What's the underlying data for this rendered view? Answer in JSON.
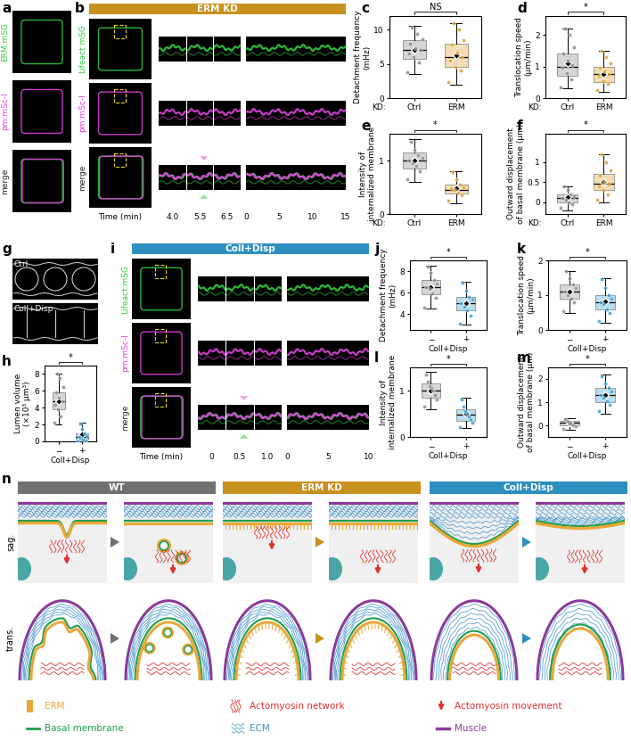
{
  "chart_data": [
    {
      "panel": "c",
      "type": "box",
      "ylabel": "Detachment frequency\n(mHz)",
      "category_prefix": "KD:",
      "categories": [
        "Ctrl",
        "ERM"
      ],
      "colors": [
        "#8c8c8c",
        "#e0a030"
      ],
      "ylim": [
        0,
        12
      ],
      "yticks": [
        0,
        5,
        10
      ],
      "significance": "NS",
      "groups": [
        {
          "q1": 5.8,
          "median": 7.0,
          "q3": 8.5,
          "whisker_low": 3.5,
          "whisker_high": 10.5,
          "mean": 7.0,
          "points": [
            3.8,
            5.2,
            6.0,
            6.5,
            7.0,
            7.3,
            8.0,
            8.6,
            9.4,
            10.3
          ]
        },
        {
          "q1": 4.5,
          "median": 6.0,
          "q3": 8.0,
          "whisker_low": 2.0,
          "whisker_high": 11.0,
          "mean": 6.3,
          "points": [
            2.3,
            4.0,
            4.6,
            5.5,
            6.0,
            6.6,
            7.8,
            8.5,
            10.0,
            11.0
          ]
        }
      ]
    },
    {
      "panel": "d",
      "type": "box",
      "ylabel": "Translocation speed\n(µm/min)",
      "category_prefix": "KD:",
      "categories": [
        "Ctrl",
        "ERM"
      ],
      "colors": [
        "#8c8c8c",
        "#e0a030"
      ],
      "ylim": [
        0,
        2.6
      ],
      "yticks": [
        0,
        1,
        2
      ],
      "significance": "*",
      "groups": [
        {
          "q1": 0.7,
          "median": 1.0,
          "q3": 1.4,
          "whisker_low": 0.3,
          "whisker_high": 2.2,
          "mean": 1.1,
          "points": [
            0.35,
            0.6,
            0.8,
            0.95,
            1.05,
            1.2,
            1.4,
            1.6,
            2.0,
            2.2
          ]
        },
        {
          "q1": 0.5,
          "median": 0.75,
          "q3": 1.0,
          "whisker_low": 0.2,
          "whisker_high": 1.5,
          "mean": 0.75,
          "points": [
            0.25,
            0.45,
            0.55,
            0.7,
            0.75,
            0.85,
            0.95,
            1.1,
            1.3,
            1.5
          ]
        }
      ]
    },
    {
      "panel": "e",
      "type": "box",
      "ylabel": "Intensity of\ninternalized membrane",
      "category_prefix": "KD:",
      "categories": [
        "Ctrl",
        "ERM"
      ],
      "colors": [
        "#8c8c8c",
        "#e0a030"
      ],
      "ylim": [
        0,
        1.5
      ],
      "yticks": [
        0,
        1
      ],
      "significance": "*",
      "groups": [
        {
          "q1": 0.85,
          "median": 1.0,
          "q3": 1.15,
          "whisker_low": 0.6,
          "whisker_high": 1.4,
          "mean": 1.0,
          "points": [
            0.65,
            0.8,
            0.9,
            0.95,
            1.0,
            1.05,
            1.1,
            1.2,
            1.35
          ]
        },
        {
          "q1": 0.38,
          "median": 0.45,
          "q3": 0.55,
          "whisker_low": 0.2,
          "whisker_high": 0.8,
          "mean": 0.48,
          "points": [
            0.25,
            0.35,
            0.4,
            0.45,
            0.48,
            0.5,
            0.55,
            0.65,
            0.78
          ]
        }
      ]
    },
    {
      "panel": "f",
      "type": "box",
      "ylabel": "Outward displacement\nof basal membrane (µm)",
      "category_prefix": "KD:",
      "categories": [
        "Ctrl",
        "ERM"
      ],
      "colors": [
        "#8c8c8c",
        "#e0a030"
      ],
      "ylim": [
        -0.3,
        1.7
      ],
      "yticks": [
        0,
        0.5,
        1
      ],
      "significance": "*",
      "groups": [
        {
          "q1": 0.0,
          "median": 0.1,
          "q3": 0.2,
          "whisker_low": -0.2,
          "whisker_high": 0.4,
          "mean": 0.12,
          "points": [
            -0.15,
            -0.05,
            0.0,
            0.05,
            0.1,
            0.15,
            0.2,
            0.3,
            0.4
          ]
        },
        {
          "q1": 0.3,
          "median": 0.45,
          "q3": 0.7,
          "whisker_low": 0.0,
          "whisker_high": 1.2,
          "mean": 0.5,
          "points": [
            0.05,
            0.2,
            0.3,
            0.4,
            0.45,
            0.5,
            0.65,
            0.8,
            1.0,
            1.2
          ]
        }
      ]
    },
    {
      "panel": "h",
      "type": "box",
      "ylabel": "Lumen volume\n(×10³ µm³)",
      "xlabel": "Coll+Disp",
      "categories": [
        "−",
        "+"
      ],
      "colors": [
        "#8c8c8c",
        "#3fa0d0"
      ],
      "ylim": [
        0,
        9
      ],
      "yticks": [
        0,
        2,
        4,
        6,
        8
      ],
      "significance": "*",
      "groups": [
        {
          "q1": 3.8,
          "median": 4.8,
          "q3": 5.8,
          "whisker_low": 2.0,
          "whisker_high": 8.0,
          "mean": 4.8,
          "points": [
            2.2,
            3.0,
            3.8,
            4.3,
            4.8,
            5.2,
            5.8,
            6.5,
            7.5,
            8.0
          ]
        },
        {
          "q1": 0.2,
          "median": 0.5,
          "q3": 1.0,
          "whisker_low": 0.0,
          "whisker_high": 2.2,
          "mean": 0.8,
          "points": [
            0.05,
            0.15,
            0.2,
            0.4,
            0.5,
            0.7,
            1.0,
            1.5,
            2.1
          ]
        }
      ]
    },
    {
      "panel": "j",
      "type": "box",
      "ylabel": "Detachment frequency\n(mHz)",
      "xlabel": "Coll+Disp",
      "categories": [
        "−",
        "+"
      ],
      "colors": [
        "#8c8c8c",
        "#3fa0d0"
      ],
      "ylim": [
        2.5,
        9
      ],
      "yticks": [
        4,
        6,
        8
      ],
      "significance": "*",
      "groups": [
        {
          "q1": 5.8,
          "median": 6.5,
          "q3": 7.2,
          "whisker_low": 4.5,
          "whisker_high": 8.5,
          "mean": 6.5,
          "points": [
            4.6,
            5.5,
            5.9,
            6.3,
            6.5,
            6.8,
            7.2,
            7.8,
            8.4
          ]
        },
        {
          "q1": 4.3,
          "median": 5.0,
          "q3": 5.6,
          "whisker_low": 3.0,
          "whisker_high": 7.0,
          "mean": 5.0,
          "points": [
            3.1,
            3.8,
            4.3,
            4.7,
            5.0,
            5.3,
            5.6,
            6.2,
            6.9
          ]
        }
      ]
    },
    {
      "panel": "k",
      "type": "box",
      "ylabel": "Translocation speed\n(µm/min)",
      "xlabel": "Coll+Disp",
      "categories": [
        "−",
        "+"
      ],
      "colors": [
        "#8c8c8c",
        "#3fa0d0"
      ],
      "ylim": [
        0,
        2
      ],
      "yticks": [
        0,
        1,
        2
      ],
      "significance": "*",
      "groups": [
        {
          "q1": 0.9,
          "median": 1.1,
          "q3": 1.3,
          "whisker_low": 0.5,
          "whisker_high": 1.7,
          "mean": 1.1,
          "points": [
            0.55,
            0.8,
            0.9,
            1.0,
            1.1,
            1.2,
            1.3,
            1.5,
            1.7
          ]
        },
        {
          "q1": 0.6,
          "median": 0.8,
          "q3": 1.0,
          "whisker_low": 0.2,
          "whisker_high": 1.5,
          "mean": 0.82,
          "points": [
            0.25,
            0.5,
            0.6,
            0.75,
            0.8,
            0.9,
            1.0,
            1.2,
            1.45
          ]
        }
      ]
    },
    {
      "panel": "l",
      "type": "box",
      "ylabel": "Intensity of\ninternalized membrane",
      "xlabel": "Coll+Disp",
      "categories": [
        "−",
        "+"
      ],
      "colors": [
        "#8c8c8c",
        "#3fa0d0"
      ],
      "ylim": [
        0,
        1.5
      ],
      "yticks": [
        0,
        1
      ],
      "significance": "*",
      "groups": [
        {
          "q1": 0.85,
          "median": 1.0,
          "q3": 1.15,
          "whisker_low": 0.6,
          "whisker_high": 1.4,
          "mean": 1.0,
          "points": [
            0.65,
            0.8,
            0.9,
            1.0,
            1.05,
            1.1,
            1.2,
            1.35
          ]
        },
        {
          "q1": 0.35,
          "median": 0.48,
          "q3": 0.6,
          "whisker_low": 0.2,
          "whisker_high": 0.85,
          "mean": 0.5,
          "points": [
            0.22,
            0.3,
            0.38,
            0.45,
            0.5,
            0.55,
            0.65,
            0.8
          ]
        }
      ]
    },
    {
      "panel": "m",
      "type": "box",
      "ylabel": "Outward displacement\nof basal membrane (µm)",
      "xlabel": "Coll+Disp",
      "categories": [
        "−",
        "+"
      ],
      "colors": [
        "#8c8c8c",
        "#3fa0d0"
      ],
      "ylim": [
        -0.5,
        2.5
      ],
      "yticks": [
        0,
        1,
        2
      ],
      "significance": "*",
      "groups": [
        {
          "q1": 0.0,
          "median": 0.1,
          "q3": 0.2,
          "whisker_low": -0.2,
          "whisker_high": 0.3,
          "mean": 0.1,
          "points": [
            -0.15,
            -0.05,
            0.0,
            0.05,
            0.1,
            0.15,
            0.2,
            0.28
          ]
        },
        {
          "q1": 1.0,
          "median": 1.3,
          "q3": 1.6,
          "whisker_low": 0.5,
          "whisker_high": 2.2,
          "mean": 1.3,
          "points": [
            0.6,
            0.9,
            1.05,
            1.2,
            1.3,
            1.45,
            1.6,
            1.8,
            2.1
          ]
        }
      ]
    }
  ],
  "images": {
    "a": {
      "panel": "a",
      "channels": [
        {
          "name": "ERM:mSG",
          "color": "#2ecc40"
        },
        {
          "name": "pm:mSc-I",
          "color": "#e040e0"
        },
        {
          "name": "merge",
          "color": "#222222"
        }
      ]
    },
    "b": {
      "panel": "b",
      "header": "ERM KD",
      "color": "#c8901c",
      "channels": [
        {
          "name": "Lifeact:mSG",
          "color": "#2ecc40"
        },
        {
          "name": "pm:mSc-I",
          "color": "#e040e0"
        },
        {
          "name": "merge",
          "color": "#222222"
        }
      ],
      "time_label": "Time (min)",
      "frame_times": [
        "4.0",
        "5.5",
        "6.5"
      ],
      "long_ticks": [
        0,
        5,
        10,
        15
      ]
    },
    "g": {
      "panel": "g",
      "conditions": [
        "Ctrl",
        "Coll+Disp"
      ]
    },
    "i": {
      "panel": "i",
      "header": "Coll+Disp",
      "color": "#2f8fc0",
      "channels": [
        {
          "name": "Lifeact:mSG",
          "color": "#2ecc40"
        },
        {
          "name": "pm:mSc-I",
          "color": "#e040e0"
        },
        {
          "name": "merge",
          "color": "#222222"
        }
      ],
      "time_label": "Time (min)",
      "frame_times": [
        "0",
        "0.5",
        "1.0"
      ],
      "long_ticks": [
        0,
        5,
        10
      ]
    }
  },
  "schematic": {
    "panel": "n",
    "conditions": [
      {
        "name": "WT",
        "color": "#707070"
      },
      {
        "name": "ERM KD",
        "color": "#c8901c"
      },
      {
        "name": "Coll+Disp",
        "color": "#2f8fc0"
      }
    ],
    "views": [
      "sag.",
      "trans."
    ],
    "legend": [
      {
        "name": "ERM",
        "color": "#e8a838"
      },
      {
        "name": "Actomyosin network",
        "color": "#e03030"
      },
      {
        "name": "Actomyosin movement",
        "color": "#e03030"
      },
      {
        "name": "Basal membrane",
        "color": "#1e9e50"
      },
      {
        "name": "ECM",
        "color": "#3a8fd0"
      },
      {
        "name": "Muscle",
        "color": "#8a3a9a"
      }
    ]
  }
}
